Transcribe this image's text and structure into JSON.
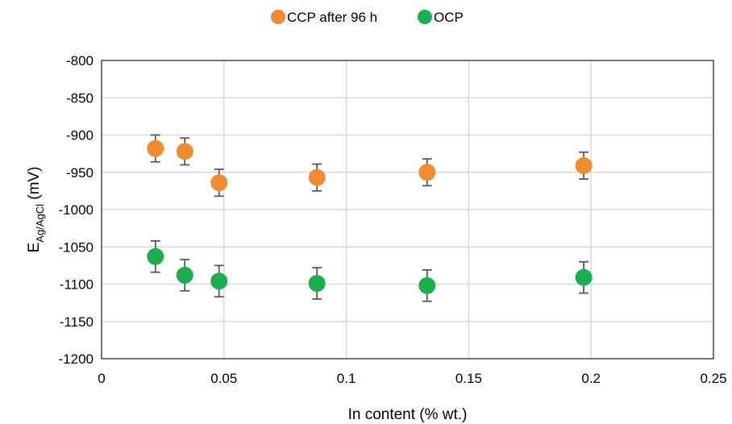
{
  "chart_data": {
    "type": "scatter",
    "title": "",
    "xlabel": "In content (% wt.)",
    "ylabel": {
      "main": "E",
      "subscript": "Ag/AgCl",
      "unit": " (mV)"
    },
    "xlim": [
      0,
      0.25
    ],
    "ylim": [
      -1200,
      -800
    ],
    "xticks": [
      "0",
      "0.05",
      "0.1",
      "0.15",
      "0.2",
      "0.25"
    ],
    "yticks": [
      "-800",
      "-850",
      "-900",
      "-950",
      "-1000",
      "-1050",
      "-1100",
      "-1150",
      "-1200"
    ],
    "grid": true,
    "legend_position": "top",
    "series": [
      {
        "name": "CCP after 96 h",
        "color": "#F28A2E",
        "x": [
          0.022,
          0.034,
          0.048,
          0.088,
          0.133,
          0.197
        ],
        "y": [
          -918,
          -922,
          -964,
          -957,
          -950,
          -941
        ],
        "error": 18
      },
      {
        "name": "OCP",
        "color": "#1BAE4E",
        "x": [
          0.022,
          0.034,
          0.048,
          0.088,
          0.133,
          0.197
        ],
        "y": [
          -1063,
          -1088,
          -1096,
          -1099,
          -1102,
          -1091
        ],
        "error": 21
      }
    ]
  }
}
